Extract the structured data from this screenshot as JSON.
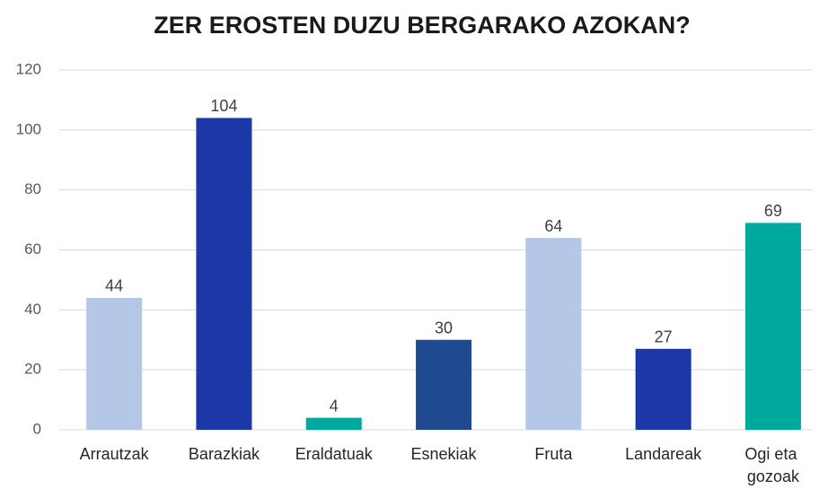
{
  "chart_data": {
    "type": "bar",
    "title": "ZER EROSTEN DUZU BERGARAKO AZOKAN?",
    "categories": [
      "Arrautzak",
      "Barazkiak",
      "Eraldatuak",
      "Esnekiak",
      "Fruta",
      "Landareak",
      "Ogi eta gozoak"
    ],
    "values": [
      44,
      104,
      4,
      30,
      64,
      27,
      69
    ],
    "colors": [
      "#b4c7e7",
      "#1c37a8",
      "#00a99d",
      "#1f4a8f",
      "#b4c7e7",
      "#1c37a8",
      "#00a99d"
    ],
    "ylim": [
      0,
      120
    ],
    "yticks": [
      0,
      20,
      40,
      60,
      80,
      100,
      120
    ],
    "grid": true
  }
}
